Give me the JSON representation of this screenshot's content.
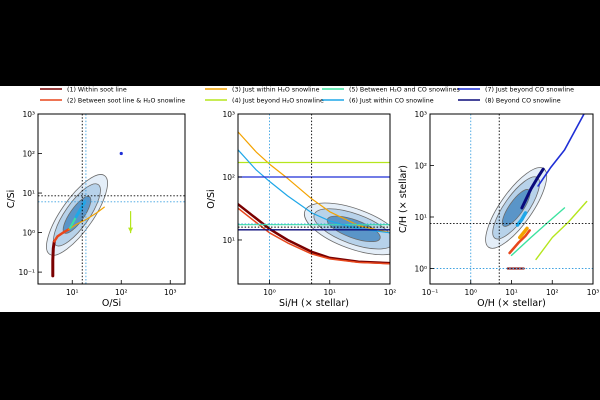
{
  "colors": {
    "background": "#000000",
    "figure": "#ffffff",
    "reference_stellar": "#3aa0e0",
    "reference_solar": "#000000",
    "contour_fill_outer": "#e4eef8",
    "contour_fill_mid": "#b7d2ea",
    "contour_fill_inner": "#5a95c8",
    "contour_line": "#6b6b6b"
  },
  "legend": [
    {
      "label": "(1) Within soot line",
      "color": "#7a0000"
    },
    {
      "label": "(2) Between soot line & H₂O snowline",
      "color": "#e8471c"
    },
    {
      "label": "(3) Just within H₂O snowline",
      "color": "#f4a300"
    },
    {
      "label": "(4) Just beyond H₂O snowline",
      "color": "#b5e61d"
    },
    {
      "label": "(5) Between H₂O and CO snowlines",
      "color": "#3de3a0"
    },
    {
      "label": "(6) Just within CO snowline",
      "color": "#1fa7e8"
    },
    {
      "label": "(7) Just beyond CO snowline",
      "color": "#1f2fd6"
    },
    {
      "label": "(8) Beyond CO snowline",
      "color": "#0a0a7a"
    }
  ],
  "chart_data": [
    {
      "type": "line",
      "xlabel": "O/Si",
      "ylabel": "C/Si",
      "xscale": "log",
      "yscale": "log",
      "xlim": [
        2,
        2000
      ],
      "ylim": [
        0.05,
        1000
      ],
      "xticks": [
        {
          "v": 10,
          "t": "10¹"
        },
        {
          "v": 100,
          "t": "10²"
        },
        {
          "v": 1000,
          "t": "10³"
        }
      ],
      "yticks": [
        {
          "v": 0.1,
          "t": "10⁻¹"
        },
        {
          "v": 1,
          "t": "10⁰"
        },
        {
          "v": 10,
          "t": "10¹"
        },
        {
          "v": 100,
          "t": "10²"
        },
        {
          "v": 1000,
          "t": "10³"
        }
      ],
      "reference_lines": {
        "solar_x": 16,
        "solar_y": 8.5,
        "stellar_x": 19,
        "stellar_y": 6
      },
      "contour_center": [
        12.5,
        2.8
      ],
      "series": [
        {
          "color": "#7a0000",
          "x": [
            4.0,
            4.0,
            4.1,
            4.3
          ],
          "y": [
            0.08,
            0.2,
            0.4,
            0.6
          ],
          "width": 3.0
        },
        {
          "color": "#e8471c",
          "x": [
            4.3,
            5.0,
            6.5,
            8.5
          ],
          "y": [
            0.6,
            0.8,
            1.0,
            1.2
          ],
          "width": 2.5
        },
        {
          "color": "#f4a300",
          "x": [
            8.5,
            12,
            20,
            32,
            45
          ],
          "y": [
            1.2,
            1.6,
            2.2,
            3.2,
            4.4
          ],
          "width": 1.2
        },
        {
          "color": "#b5e61d",
          "x": [
            155,
            155
          ],
          "y": [
            3.4,
            1.0
          ],
          "width": 1.2,
          "arrow": true
        },
        {
          "color": "#3de3a0",
          "x": [
            9,
            12,
            14
          ],
          "y": [
            1.3,
            2.5,
            3.5
          ],
          "width": 2.0
        },
        {
          "color": "#1fa7e8",
          "x": [
            12,
            15,
            18
          ],
          "y": [
            2.5,
            4.0,
            6.0
          ],
          "width": 3.0
        },
        {
          "color": "#1f2fd6",
          "x": [
            100,
            101
          ],
          "y": [
            100,
            98
          ],
          "width": 2.0,
          "marker": true
        }
      ]
    },
    {
      "type": "line",
      "xlabel": "Si/H (× stellar)",
      "ylabel": "O/Si",
      "xscale": "log",
      "yscale": "log",
      "xlim": [
        0.3,
        100
      ],
      "ylim": [
        2,
        1000
      ],
      "xticks": [
        {
          "v": 1,
          "t": "10⁰"
        },
        {
          "v": 10,
          "t": "10¹"
        },
        {
          "v": 100,
          "t": "10²"
        }
      ],
      "yticks": [
        {
          "v": 10,
          "t": "10¹"
        },
        {
          "v": 100,
          "t": "10²"
        },
        {
          "v": 1000,
          "t": "10³"
        }
      ],
      "reference_lines": {
        "solar_x": 5.0,
        "solar_y": 16,
        "stellar_x": 1.0,
        "stellar_y": 18
      },
      "contour_center": [
        25,
        15
      ],
      "series": [
        {
          "color": "#7a0000",
          "x": [
            0.3,
            0.6,
            1,
            2,
            5,
            10,
            30,
            100
          ],
          "y": [
            37,
            22,
            15,
            10,
            6.5,
            5.2,
            4.5,
            4.3
          ],
          "width": 2.5
        },
        {
          "color": "#e8471c",
          "x": [
            0.3,
            0.6,
            1,
            2,
            5,
            10,
            30,
            100
          ],
          "y": [
            32,
            19,
            13,
            9,
            6,
            5,
            4.4,
            4.2
          ],
          "width": 1.5
        },
        {
          "color": "#f4a300",
          "x": [
            0.3,
            0.6,
            1,
            2,
            5,
            10,
            30,
            100
          ],
          "y": [
            520,
            250,
            160,
            95,
            45,
            28,
            17,
            13
          ],
          "width": 1.2
        },
        {
          "color": "#b5e61d",
          "x": [
            0.3,
            100
          ],
          "y": [
            170,
            170
          ],
          "width": 1.2
        },
        {
          "color": "#3de3a0",
          "x": [
            0.3,
            100
          ],
          "y": [
            17.5,
            17.5
          ],
          "width": 1.2
        },
        {
          "color": "#1fa7e8",
          "x": [
            0.3,
            0.6,
            1,
            2,
            5,
            10,
            30,
            100
          ],
          "y": [
            270,
            130,
            85,
            50,
            27,
            20,
            15,
            13
          ],
          "width": 1.2
        },
        {
          "color": "#1f2fd6",
          "x": [
            0.3,
            100
          ],
          "y": [
            100,
            100
          ],
          "width": 1.2
        },
        {
          "color": "#0a0a7a",
          "x": [
            0.3,
            100
          ],
          "y": [
            14.5,
            14.5
          ],
          "width": 1.4
        }
      ]
    },
    {
      "type": "line",
      "xlabel": "O/H (× stellar)",
      "ylabel": "C/H (× stellar)",
      "xscale": "log",
      "yscale": "log",
      "xlim": [
        0.1,
        1000
      ],
      "ylim": [
        0.5,
        1000
      ],
      "xticks": [
        {
          "v": 0.1,
          "t": "10⁻¹"
        },
        {
          "v": 1,
          "t": "10⁰"
        },
        {
          "v": 10,
          "t": "10¹"
        },
        {
          "v": 100,
          "t": "10²"
        },
        {
          "v": 1000,
          "t": "10³"
        }
      ],
      "yticks": [
        {
          "v": 1,
          "t": "10⁰"
        },
        {
          "v": 10,
          "t": "10¹"
        },
        {
          "v": 100,
          "t": "10²"
        },
        {
          "v": 1000,
          "t": "10³"
        }
      ],
      "reference_lines": {
        "solar_x": 5.0,
        "solar_y": 7.5,
        "stellar_x": 1.0,
        "stellar_y": 1.0
      },
      "contour_center": [
        13,
        15
      ],
      "series": [
        {
          "color": "#7a0000",
          "x": [
            8,
            20
          ],
          "y": [
            1.0,
            1.0
          ],
          "width": 2.0
        },
        {
          "color": "#e8471c",
          "x": [
            9,
            15,
            22,
            28
          ],
          "y": [
            2.0,
            3.2,
            4.3,
            5.5
          ],
          "width": 2.5
        },
        {
          "color": "#f4a300",
          "x": [
            16,
            20,
            24
          ],
          "y": [
            4.0,
            5.0,
            6.0
          ],
          "width": 3.5
        },
        {
          "color": "#b5e61d",
          "x": [
            40,
            100,
            250,
            700
          ],
          "y": [
            1.5,
            4,
            8,
            20
          ],
          "width": 1.4
        },
        {
          "color": "#3de3a0",
          "x": [
            10,
            30,
            80,
            200
          ],
          "y": [
            1.8,
            4,
            8,
            15
          ],
          "width": 1.4
        },
        {
          "color": "#1fa7e8",
          "x": [
            14,
            18,
            22
          ],
          "y": [
            7,
            9,
            12
          ],
          "width": 3.5
        },
        {
          "color": "#1f2fd6",
          "x": [
            45,
            90,
            200,
            600
          ],
          "y": [
            40,
            90,
            200,
            1000
          ],
          "width": 1.6
        },
        {
          "color": "#0a0a7a",
          "x": [
            18,
            30,
            45,
            60
          ],
          "y": [
            15,
            35,
            60,
            85
          ],
          "width": 3.0
        }
      ]
    }
  ]
}
